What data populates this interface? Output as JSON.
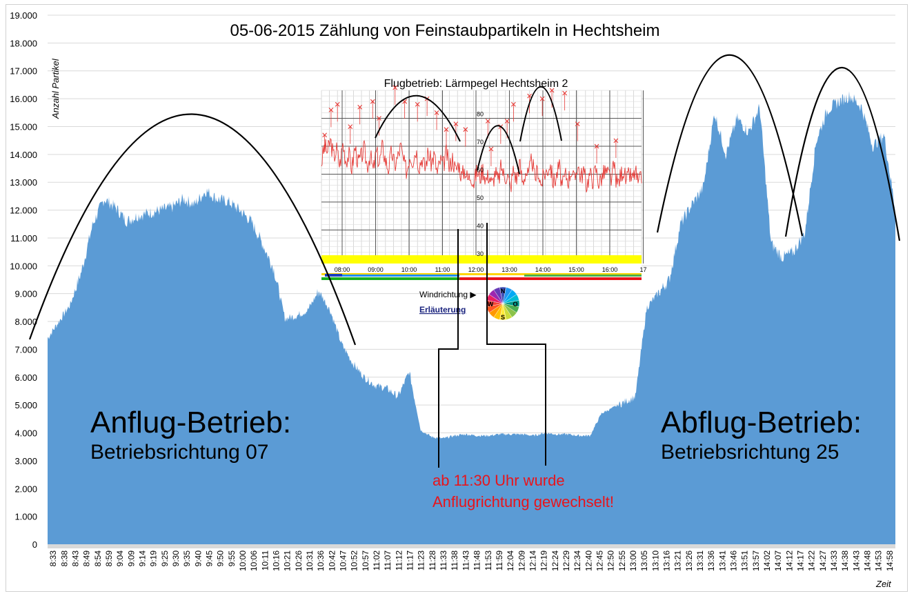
{
  "chart_data": {
    "type": "area",
    "title": "05-06-2015 Zählung von Feinstaubpartikeln in Hechtsheim",
    "ylabel": "Anzahl Partikel",
    "xlabel": "Zeit",
    "ylim": [
      0,
      19000
    ],
    "y_ticks": [
      "0",
      "1.000",
      "2.000",
      "3.000",
      "4.000",
      "5.000",
      "6.000",
      "7.000",
      "8.000",
      "9.000",
      "10.000",
      "11.000",
      "12.000",
      "13.000",
      "14.000",
      "15.000",
      "16.000",
      "17.000",
      "18.000",
      "19.000"
    ],
    "categories": [
      "8:33",
      "8:38",
      "8:43",
      "8:49",
      "8:54",
      "8:59",
      "9:04",
      "9:09",
      "9:14",
      "9:19",
      "9:25",
      "9:30",
      "9:35",
      "9:40",
      "9:45",
      "9:50",
      "9:55",
      "10:00",
      "10:06",
      "10:11",
      "10:16",
      "10:21",
      "10:26",
      "10:31",
      "10:36",
      "10:42",
      "10:47",
      "10:52",
      "10:57",
      "11:02",
      "11:07",
      "11:12",
      "11:17",
      "11:23",
      "11:28",
      "11:33",
      "11:38",
      "11:43",
      "11:48",
      "11:53",
      "11:59",
      "12:04",
      "12:09",
      "12:14",
      "12:19",
      "12:24",
      "12:29",
      "12:34",
      "12:40",
      "12:45",
      "12:50",
      "12:55",
      "13:00",
      "13:05",
      "13:10",
      "13:16",
      "13:21",
      "13:26",
      "13:31",
      "13:36",
      "13:41",
      "13:46",
      "13:51",
      "13:57",
      "14:02",
      "14:07",
      "14:12",
      "14:17",
      "14:22",
      "14:27",
      "14:33",
      "14:38",
      "14:43",
      "14:48",
      "14:53",
      "14:58"
    ],
    "series": [
      {
        "color": "#5b9bd5",
        "values": [
          7400,
          8000,
          8600,
          9800,
          11500,
          12400,
          12100,
          11600,
          11800,
          11900,
          12000,
          12100,
          12400,
          12200,
          12700,
          12400,
          12300,
          12000,
          11600,
          10800,
          9900,
          8100,
          8200,
          8400,
          9100,
          8400,
          7200,
          6500,
          6000,
          5700,
          5600,
          5300,
          6200,
          4100,
          3850,
          3800,
          3900,
          3950,
          3900,
          3900,
          3950,
          3950,
          3950,
          3900,
          4000,
          3950,
          3950,
          3900,
          3900,
          4700,
          4900,
          5100,
          5300,
          8500,
          9000,
          9500,
          11500,
          12200,
          12800,
          15500,
          14000,
          15300,
          14800,
          15700,
          10800,
          10300,
          10500,
          11200,
          14500,
          15600,
          15900,
          16100,
          15700,
          14300,
          14700,
          12000
        ]
      }
    ],
    "annotations": {
      "left_label": "Anflug-Betrieb:",
      "left_sub": "Betriebsrichtung 07",
      "right_label": "Abflug-Betrieb:",
      "right_sub": "Betriebsrichtung 25",
      "change_note_1": "ab 11:30 Uhr wurde",
      "change_note_2": "Anflugrichtung gewechselt!"
    },
    "inset": {
      "type": "line",
      "title": "Flugbetrieb: Lärmpegel Hechtsheim 2",
      "x_ticks": [
        "08:00",
        "09:00",
        "10:00",
        "11:00",
        "12:00",
        "13:00",
        "14:00",
        "15:00",
        "16:00",
        "17"
      ],
      "y_ticks": [
        "30",
        "40",
        "50",
        "60",
        "70",
        "80"
      ],
      "ylim": [
        28,
        90
      ],
      "series_color": "#e53935",
      "values": [
        64,
        70,
        68,
        72,
        66,
        69,
        63,
        71,
        65,
        67,
        62,
        70,
        64,
        66,
        69,
        63,
        67,
        61,
        68,
        64,
        70,
        65,
        62,
        68,
        63,
        66,
        70,
        64,
        61,
        67,
        65,
        69,
        63,
        66,
        62,
        68,
        64,
        67,
        60,
        65,
        63,
        68,
        62,
        66,
        61,
        64,
        59,
        62,
        58,
        60,
        57,
        61,
        59,
        62,
        58,
        60,
        56,
        61,
        57,
        63,
        59,
        60,
        55,
        62,
        58,
        64,
        57,
        61,
        59,
        66,
        58,
        62,
        56,
        60,
        61,
        64,
        57,
        59,
        63,
        55,
        60,
        58,
        62,
        57,
        64,
        59,
        61,
        56,
        60,
        58,
        62,
        57,
        59,
        61,
        60,
        58,
        63,
        56,
        59,
        62,
        57,
        60,
        58,
        61,
        56,
        59
      ],
      "peak_x": [
        0.01,
        0.03,
        0.05,
        0.09,
        0.12,
        0.16,
        0.18,
        0.23,
        0.26,
        0.3,
        0.33,
        0.36,
        0.39,
        0.42,
        0.45,
        0.52,
        0.53,
        0.56,
        0.58,
        0.6,
        0.65,
        0.69,
        0.72,
        0.76,
        0.8,
        0.86,
        0.92
      ],
      "peak_y": [
        74,
        83,
        85,
        77,
        84,
        86,
        80,
        91,
        86,
        85,
        87,
        82,
        76,
        78,
        76,
        79,
        69,
        77,
        79,
        85,
        88,
        87,
        90,
        89,
        78,
        70,
        72
      ],
      "wind_label": "Windrichtung ▶",
      "wind_letters": [
        "N",
        "O",
        "S",
        "W"
      ],
      "link": "Erläuterung"
    }
  }
}
